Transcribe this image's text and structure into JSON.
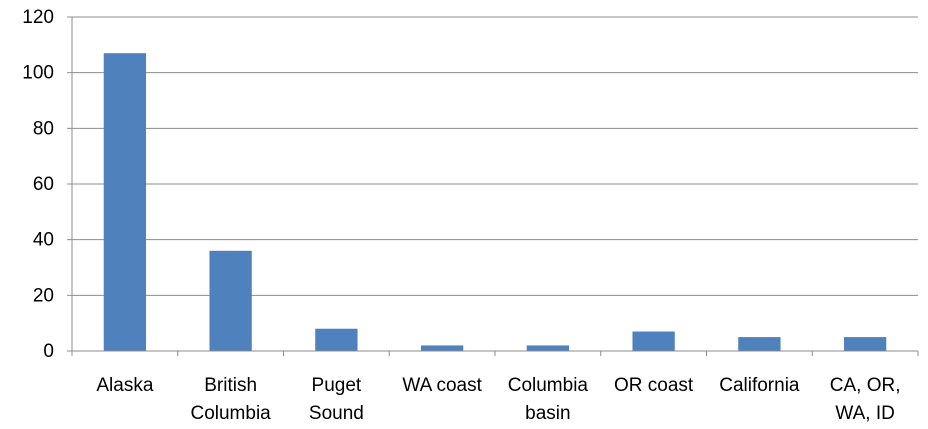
{
  "chart_data": {
    "type": "bar",
    "title": "",
    "xlabel": "",
    "ylabel": "",
    "categories": [
      [
        "Alaska"
      ],
      [
        "British",
        "Columbia"
      ],
      [
        "Puget",
        "Sound"
      ],
      [
        "WA coast"
      ],
      [
        "Columbia",
        "basin"
      ],
      [
        "OR coast"
      ],
      [
        "California"
      ],
      [
        "CA, OR,",
        "WA, ID"
      ]
    ],
    "values": [
      107,
      36,
      8,
      2,
      2,
      7,
      5,
      5
    ],
    "ylim": [
      0,
      120
    ],
    "yticks": [
      "0",
      "20",
      "40",
      "60",
      "80",
      "100",
      "120"
    ],
    "grid": true,
    "legend": "none",
    "bar_color": "#4f81bd"
  }
}
